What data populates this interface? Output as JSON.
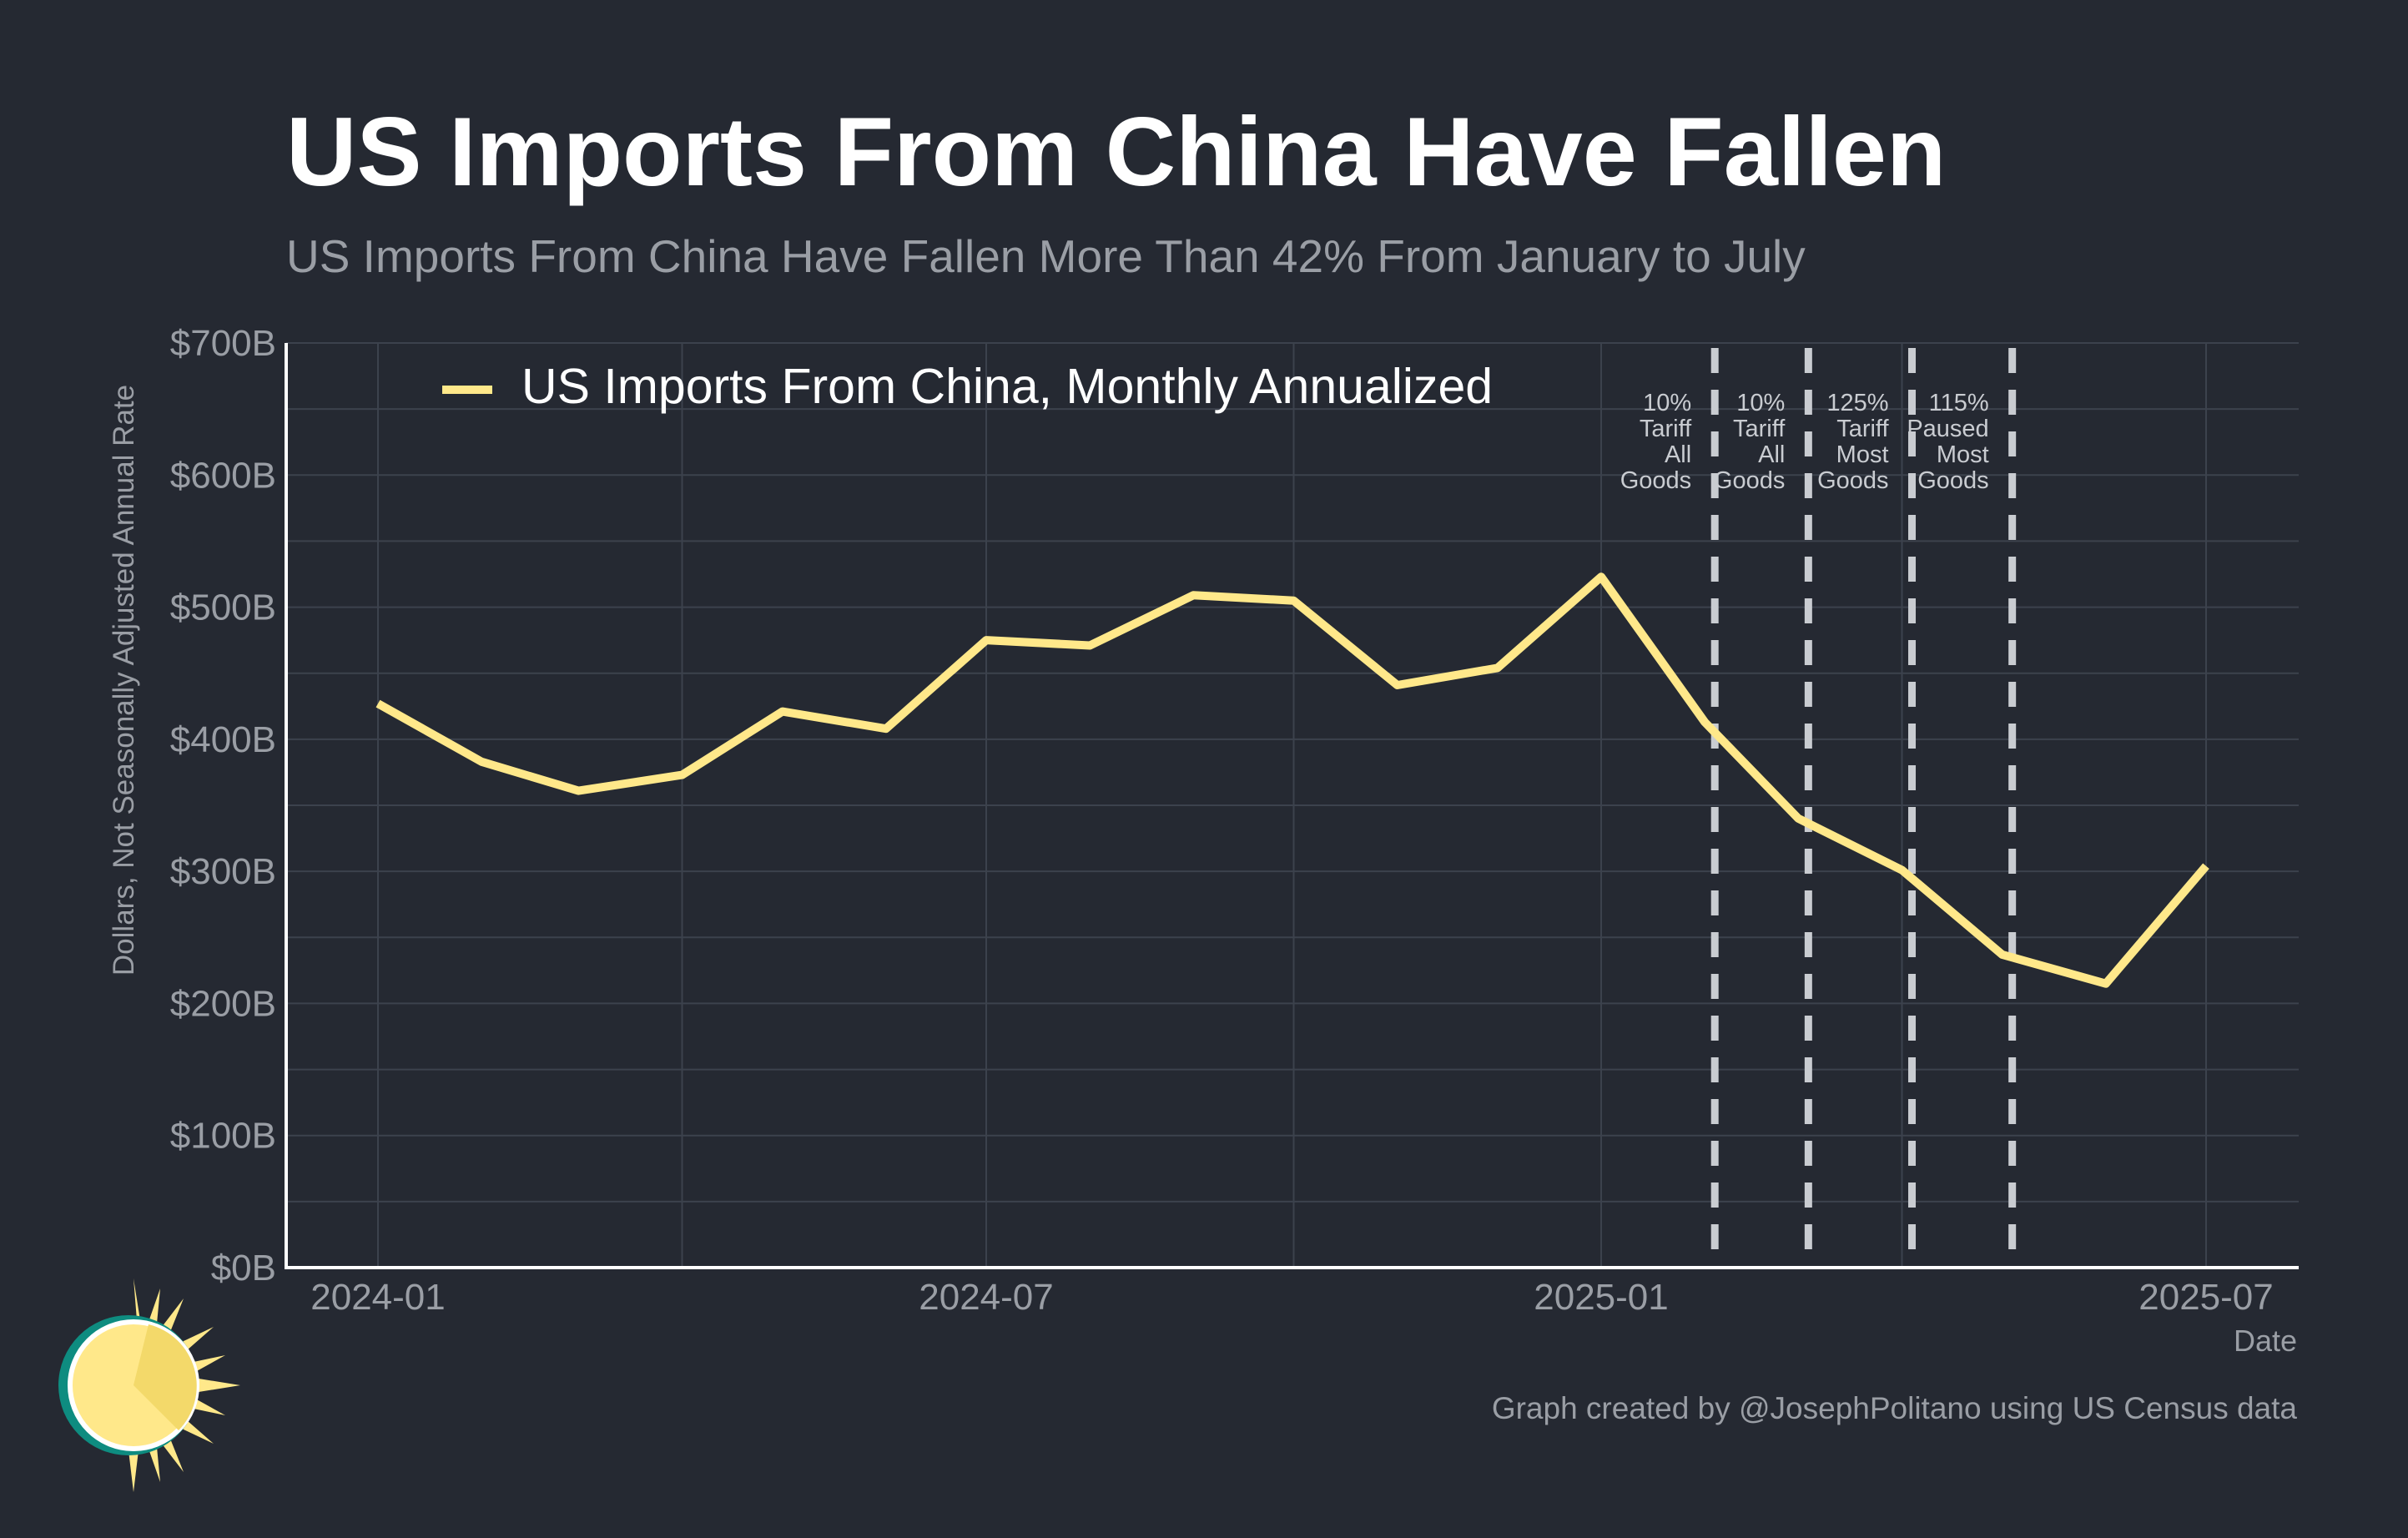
{
  "title": "US Imports From China Have Fallen",
  "subtitle": "US Imports From China Have Fallen More Than 42% From January to July",
  "credit": "Graph created by @JosephPolitano using US Census data",
  "chart_data": {
    "type": "line",
    "xlabel": "Date",
    "ylabel": "Dollars, Not Seasonally Adjusted Annual Rate",
    "ylim": [
      0,
      700
    ],
    "y_unit": "billions of US dollars",
    "y_ticks": [
      "$0B",
      "$100B",
      "$200B",
      "$300B",
      "$400B",
      "$500B",
      "$600B",
      "$700B"
    ],
    "x_ticks": [
      "2024-01",
      "2024-07",
      "2025-01",
      "2025-07"
    ],
    "grid": true,
    "legend_position": "top-left",
    "x": [
      "2024-01",
      "2024-02",
      "2024-03",
      "2024-04",
      "2024-05",
      "2024-06",
      "2024-07",
      "2024-08",
      "2024-09",
      "2024-10",
      "2024-11",
      "2024-12",
      "2025-01",
      "2025-02",
      "2025-03",
      "2025-04",
      "2025-05",
      "2025-06",
      "2025-07"
    ],
    "series": [
      {
        "name": "US Imports From China, Monthly Annualized",
        "color": "#FFE88A",
        "values": [
          427,
          383,
          361,
          373,
          421,
          408,
          475,
          471,
          509,
          505,
          441,
          454,
          523,
          413,
          340,
          301,
          237,
          215,
          304
        ]
      }
    ],
    "annotations": [
      {
        "date": "2025-02-04",
        "lines": [
          "10%",
          "Tariff",
          "All",
          "Goods"
        ],
        "label_side": "left"
      },
      {
        "date": "2025-03-04",
        "lines": [
          "10%",
          "Tariff",
          "All",
          "Goods"
        ],
        "label_side": "left"
      },
      {
        "date": "2025-04-04",
        "lines": [
          "125%",
          "Tariff",
          "Most",
          "Goods"
        ],
        "label_side": "left"
      },
      {
        "date": "2025-05-04",
        "lines": [
          "115%",
          "Paused",
          "Most",
          "Goods"
        ],
        "label_side": "left"
      }
    ]
  },
  "colors": {
    "background": "#252932",
    "grid": "#3C424D",
    "axis": "#FFFFFF",
    "line": "#FFE88A",
    "muted_text": "#9A9EA5",
    "annotation_line": "#C9CCD1",
    "annotation_text": "#C9CCD1",
    "logo_sun": "#FFE88A",
    "logo_ring": "#0E8C80"
  },
  "logo": {
    "icon": "sun-logo-icon"
  }
}
